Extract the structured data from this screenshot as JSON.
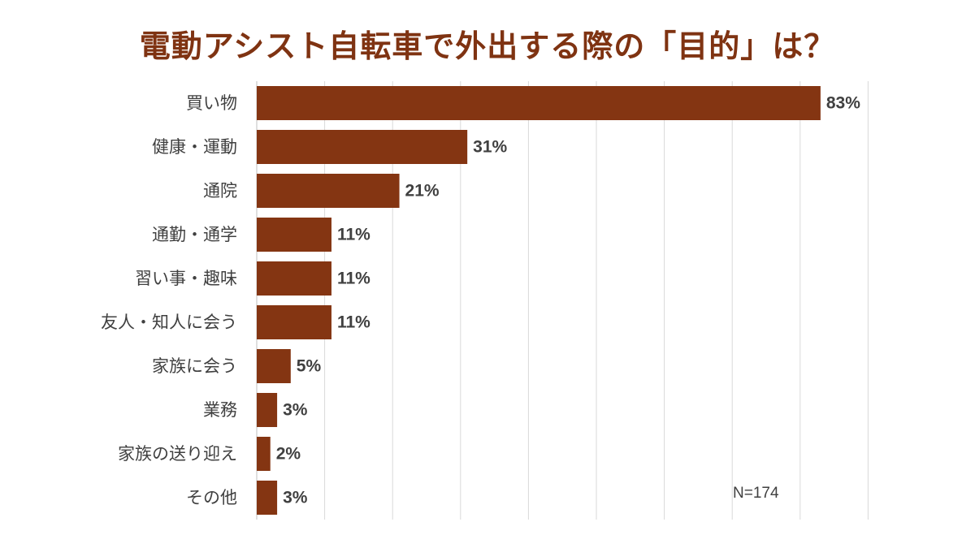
{
  "chart_data": {
    "type": "bar",
    "orientation": "horizontal",
    "title": "電動アシスト自転車で外出する際の「目的」は？",
    "categories": [
      "買い物",
      "健康・運動",
      "通院",
      "通勤・通学",
      "習い事・趣味",
      "友人・知人に会う",
      "家族に会う",
      "業務",
      "家族の送り迎え",
      "その他"
    ],
    "values": [
      83,
      31,
      21,
      11,
      11,
      11,
      5,
      3,
      2,
      3
    ],
    "value_labels": [
      "83%",
      "31%",
      "21%",
      "11%",
      "11%",
      "11%",
      "5%",
      "3%",
      "2%",
      "3%"
    ],
    "unit": "%",
    "xlim": [
      0,
      90
    ],
    "grid": true,
    "bar_color": "#843512",
    "title_color": "#7f3312",
    "annotation": "N=174"
  }
}
